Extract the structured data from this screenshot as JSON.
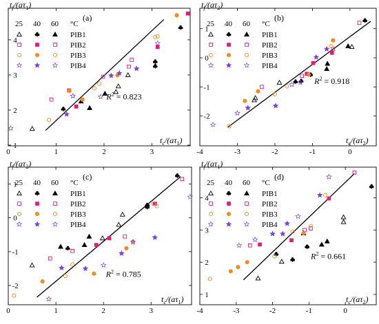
{
  "colors": {
    "c25": "#000000",
    "c40": "#000000",
    "c60": "#000000",
    "PIB1": "#000000",
    "PIB2": "#e8197c",
    "PIB3": "#f08a24",
    "PIB4": "#7a3fd6",
    "fit": "#000000"
  },
  "chart_data": [
    {
      "type": "scatter",
      "panel_label": "(a)",
      "ylabel_main": "t",
      "ylabel_sub": "f",
      "ylabel_rest": "/(aτ",
      "ylabel_idx": "1",
      "ylabel_end": ")",
      "xlabel_main": "t",
      "xlabel_sub": "c",
      "xlabel_rest": "/(aτ",
      "xlabel_idx": "1",
      "xlabel_end": ")",
      "xlim": [
        0,
        3.8
      ],
      "ylim": [
        1.0,
        4.9
      ],
      "xticks": [
        0,
        1,
        2,
        3
      ],
      "yticks": [
        1,
        2,
        3,
        4
      ],
      "xticklabels": [
        "0",
        "1",
        "2",
        "3"
      ],
      "yticklabels": [
        "1",
        "2",
        "3",
        "4"
      ],
      "r2_label": "R",
      "r2_sup": "2",
      "r2_value": " = 0.823",
      "r2_pos": [
        2.05,
        2.3
      ],
      "fit": {
        "x": [
          0.78,
          3.25
        ],
        "y": [
          1.42,
          4.58
        ]
      },
      "legend": {
        "temps": [
          "25",
          "40",
          "60"
        ],
        "unit": "°C",
        "series": [
          "PIB1",
          "PIB2",
          "PIB3",
          "PIB4"
        ]
      },
      "series": [
        {
          "name": "PIB1",
          "points": [
            [
              0.5,
              1.47
            ],
            [
              1.15,
              2.03
            ],
            [
              1.7,
              2.06
            ],
            [
              2.3,
              2.68
            ],
            [
              3.07,
              3.25
            ],
            [
              1.52,
              2.25
            ],
            [
              2.25,
              2.52
            ],
            [
              3.07,
              3.38
            ],
            [
              2.02,
              2.47
            ],
            [
              2.5,
              3.0
            ],
            [
              3.6,
              4.35
            ]
          ]
        },
        {
          "name": "PIB2",
          "points": [
            [
              0.9,
              2.3
            ],
            [
              1.42,
              2.1
            ],
            [
              2.52,
              3.24
            ],
            [
              1.27,
              2.56
            ],
            [
              1.98,
              2.95
            ],
            [
              3.12,
              3.8
            ],
            [
              2.58,
              3.43
            ],
            [
              3.75,
              4.75
            ]
          ]
        },
        {
          "name": "PIB3",
          "points": [
            [
              0.85,
              1.72
            ],
            [
              1.55,
              2.3
            ],
            [
              1.9,
              2.75
            ],
            [
              1.28,
              2.55
            ],
            [
              1.8,
              2.62
            ],
            [
              2.28,
              2.99
            ],
            [
              3.07,
              4.08
            ],
            [
              3.52,
              4.7
            ],
            [
              3.12,
              4.1
            ]
          ]
        },
        {
          "name": "PIB4",
          "points": [
            [
              0.05,
              1.48
            ],
            [
              1.22,
              1.88
            ],
            [
              1.93,
              2.38
            ],
            [
              2.68,
              3.18
            ],
            [
              1.35,
              2.4
            ],
            [
              2.15,
              2.98
            ],
            [
              3.12,
              3.9
            ],
            [
              2.32,
              3.05
            ]
          ]
        }
      ]
    },
    {
      "type": "scatter",
      "panel_label": "(b)",
      "ylabel_main": "t",
      "ylabel_sub": "f",
      "ylabel_rest": "/(aτ",
      "ylabel_idx": "2",
      "ylabel_end": ")",
      "xlabel_main": "t",
      "xlabel_sub": "c",
      "xlabel_rest": "/(aτ",
      "xlabel_idx": "2",
      "xlabel_end": ")",
      "xlim": [
        -4.0,
        0.7
      ],
      "ylim": [
        -3.0,
        1.7
      ],
      "xticks": [
        -4,
        -3,
        -2,
        -1,
        0
      ],
      "yticks": [
        -2,
        -1,
        0,
        1
      ],
      "xticklabels": [
        "-4",
        "-3",
        "-2",
        "-1",
        "0"
      ],
      "yticklabels": [
        "-2",
        "-1",
        "0",
        "1"
      ],
      "r2_label": "R",
      "r2_sup": "2",
      "r2_value": " = 0.918",
      "r2_pos": [
        -0.95,
        -0.9
      ],
      "fit": {
        "x": [
          -3.25,
          0.55
        ],
        "y": [
          -2.38,
          1.25
        ]
      },
      "legend": {
        "temps": [
          "25",
          "40",
          "60"
        ],
        "unit": "°C",
        "series": [
          "PIB1",
          "PIB2",
          "PIB3",
          "PIB4"
        ]
      },
      "series": [
        {
          "name": "PIB1",
          "points": [
            [
              -2.55,
              -1.45
            ],
            [
              -1.45,
              -0.82
            ],
            [
              -0.6,
              -0.2
            ],
            [
              -2.52,
              -1.38
            ],
            [
              -1.3,
              -0.8
            ],
            [
              -0.62,
              -0.38
            ],
            [
              -1.88,
              -0.85
            ],
            [
              -1.05,
              -0.58
            ],
            [
              -0.05,
              0.4
            ],
            [
              0.05,
              0.38
            ],
            [
              0.4,
              1.28
            ]
          ]
        },
        {
          "name": "PIB2",
          "points": [
            [
              -2.35,
              -1.0
            ],
            [
              -0.98,
              -0.18
            ],
            [
              -1.28,
              -0.62
            ],
            [
              -0.48,
              0.17
            ],
            [
              -0.45,
              0.3
            ],
            [
              -1.15,
              -0.55
            ],
            [
              0.25,
              1.2
            ]
          ]
        },
        {
          "name": "PIB3",
          "points": [
            [
              -3.22,
              -2.35
            ],
            [
              -2.45,
              -1.15
            ],
            [
              -0.5,
              0.4
            ],
            [
              -2.8,
              -1.48
            ],
            [
              -1.68,
              -0.98
            ],
            [
              -1.1,
              -0.58
            ],
            [
              -2.0,
              -1.25
            ],
            [
              -0.45,
              0.6
            ]
          ]
        },
        {
          "name": "PIB4",
          "points": [
            [
              -3.65,
              -2.3
            ],
            [
              -2.72,
              -1.72
            ],
            [
              -1.55,
              -0.92
            ],
            [
              -0.9,
              0.02
            ],
            [
              -3.0,
              -1.9
            ],
            [
              -1.98,
              -1.65
            ],
            [
              -1.32,
              -0.85
            ],
            [
              -0.62,
              0.3
            ]
          ]
        }
      ]
    },
    {
      "type": "scatter",
      "panel_label": "(c)",
      "ylabel_main": "t",
      "ylabel_sub": "f",
      "ylabel_rest": "/(aτ",
      "ylabel_idx": "2",
      "ylabel_end": ")",
      "xlabel_main": "t",
      "xlabel_sub": "c",
      "xlabel_rest": "/(aτ",
      "xlabel_idx": "1",
      "xlabel_end": ")",
      "xlim": [
        0,
        3.85
      ],
      "ylim": [
        -2.55,
        1.5
      ],
      "xticks": [
        0,
        1,
        2,
        3
      ],
      "yticks": [
        -2,
        -1,
        0,
        1
      ],
      "xticklabels": [
        "0",
        "1",
        "2",
        "3"
      ],
      "yticklabels": [
        "-2",
        "-1",
        "0",
        "1"
      ],
      "r2_label": "R",
      "r2_sup": "2",
      "r2_value": " = 0.785",
      "r2_pos": [
        2.05,
        -1.75
      ],
      "fit": {
        "x": [
          0.6,
          3.62
        ],
        "y": [
          -2.35,
          1.22
        ]
      },
      "legend": {
        "temps": [
          "25",
          "40",
          "60"
        ],
        "unit": "°C",
        "series": [
          "PIB1",
          "PIB2",
          "PIB3",
          "PIB4"
        ]
      },
      "series": [
        {
          "name": "PIB1",
          "points": [
            [
              0.5,
              -1.4
            ],
            [
              1.25,
              -0.9
            ],
            [
              1.7,
              -0.55
            ],
            [
              2.32,
              -0.2
            ],
            [
              2.92,
              0.38
            ],
            [
              1.1,
              -0.85
            ],
            [
              1.98,
              -0.6
            ],
            [
              2.92,
              0.32
            ],
            [
              1.6,
              -0.8
            ],
            [
              2.4,
              0.1
            ],
            [
              3.55,
              1.25
            ]
          ]
        },
        {
          "name": "PIB2",
          "points": [
            [
              0.88,
              -1.2
            ],
            [
              1.85,
              -0.8
            ],
            [
              2.45,
              -0.55
            ],
            [
              3.08,
              0.42
            ],
            [
              1.35,
              -0.98
            ],
            [
              2.12,
              -0.6
            ],
            [
              3.65,
              1.15
            ]
          ]
        },
        {
          "name": "PIB3",
          "points": [
            [
              0.12,
              -2.3
            ],
            [
              0.72,
              -1.88
            ],
            [
              1.2,
              -1.72
            ],
            [
              1.8,
              -1.65
            ],
            [
              1.35,
              -1.38
            ],
            [
              2.48,
              -0.9
            ],
            [
              3.12,
              0.35
            ],
            [
              2.62,
              -0.7
            ],
            [
              3.05,
              0.42
            ]
          ]
        },
        {
          "name": "PIB4",
          "points": [
            [
              0.85,
              -2.4
            ],
            [
              1.62,
              -1.5
            ],
            [
              2.62,
              -0.72
            ],
            [
              1.12,
              -1.48
            ],
            [
              2.0,
              -1.4
            ],
            [
              3.08,
              -0.58
            ],
            [
              3.82,
              0.62
            ],
            [
              2.38,
              -1.05
            ]
          ]
        }
      ]
    },
    {
      "type": "scatter",
      "panel_label": "(d)",
      "ylabel_main": "t",
      "ylabel_sub": "f",
      "ylabel_rest": "/(aτ",
      "ylabel_idx": "1",
      "ylabel_end": ")",
      "xlabel_main": "t",
      "xlabel_sub": "c",
      "xlabel_rest": "/(aτ",
      "xlabel_idx": "2",
      "xlabel_end": ")",
      "xlim": [
        -4.0,
        0.85
      ],
      "ylim": [
        0.7,
        4.95
      ],
      "xticks": [
        -4,
        -3,
        -2,
        -1,
        0
      ],
      "yticks": [
        1,
        2,
        3,
        4
      ],
      "xticklabels": [
        "-4",
        "-3",
        "-2",
        "-1",
        "0"
      ],
      "yticklabels": [
        "1",
        "2",
        "3",
        "4"
      ],
      "r2_label": "R",
      "r2_sup": "2",
      "r2_value": " = 0.661",
      "r2_pos": [
        -0.95,
        2.1
      ],
      "fit": {
        "x": [
          -2.8,
          0.25
        ],
        "y": [
          1.45,
          4.75
        ]
      },
      "legend": {
        "temps": [
          "25",
          "40",
          "60"
        ],
        "unit": "°C",
        "series": [
          "PIB1",
          "PIB2",
          "PIB3",
          "PIB4"
        ]
      },
      "series": [
        {
          "name": "PIB1",
          "points": [
            [
              -2.4,
              1.5
            ],
            [
              -1.45,
              2.08
            ],
            [
              -0.65,
              2.55
            ],
            [
              -1.75,
              2.02
            ],
            [
              -1.05,
              2.48
            ],
            [
              -0.5,
              2.65
            ],
            [
              -0.05,
              3.25
            ],
            [
              -1.9,
              2.25
            ],
            [
              -1.15,
              2.9
            ],
            [
              -0.05,
              3.4
            ],
            [
              0.72,
              4.35
            ]
          ]
        },
        {
          "name": "PIB2",
          "points": [
            [
              -2.62,
              2.52
            ],
            [
              -1.48,
              2.68
            ],
            [
              -0.95,
              3.05
            ],
            [
              -2.35,
              2.55
            ],
            [
              -1.12,
              3.0
            ],
            [
              -0.45,
              3.98
            ],
            [
              0.25,
              4.78
            ]
          ]
        },
        {
          "name": "PIB3",
          "points": [
            [
              -3.72,
              1.48
            ],
            [
              -2.7,
              2.0
            ],
            [
              -0.95,
              3.12
            ],
            [
              -3.15,
              1.72
            ],
            [
              -1.95,
              2.18
            ],
            [
              -1.15,
              2.9
            ],
            [
              -0.55,
              4.08
            ],
            [
              -2.95,
              1.85
            ],
            [
              -1.45,
              2.95
            ]
          ]
        },
        {
          "name": "PIB4",
          "points": [
            [
              -2.92,
              2.52
            ],
            [
              -2.0,
              2.88
            ],
            [
              -1.3,
              3.42
            ],
            [
              -0.7,
              4.08
            ],
            [
              -2.48,
              2.7
            ],
            [
              -1.6,
              3.2
            ],
            [
              -0.45,
              4.65
            ],
            [
              -1.72,
              2.88
            ]
          ]
        }
      ]
    }
  ]
}
